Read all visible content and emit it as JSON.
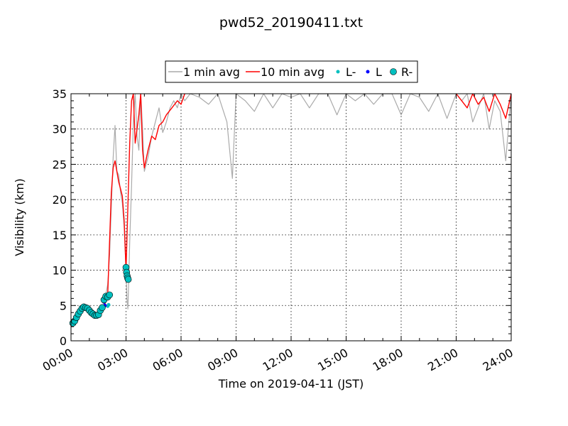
{
  "chart_data": {
    "type": "line",
    "title": "pwd52_20190411.txt",
    "xlabel": "Time on 2019-04-11 (JST)",
    "ylabel": "Visibility (km)",
    "xlim": [
      "00:00",
      "24:00"
    ],
    "ylim": [
      0,
      35
    ],
    "x_unit": "hours",
    "x_ticks": [
      0,
      3,
      6,
      9,
      12,
      15,
      18,
      21,
      24
    ],
    "x_tick_labels": [
      "00:00",
      "03:00",
      "06:00",
      "09:00",
      "12:00",
      "15:00",
      "18:00",
      "21:00",
      "24:00"
    ],
    "y_ticks": [
      0,
      5,
      10,
      15,
      20,
      25,
      30,
      35
    ],
    "y_tick_labels": [
      "0",
      "5",
      "10",
      "15",
      "20",
      "25",
      "30",
      "35"
    ],
    "grid": true,
    "legend": {
      "placement": "top-center, outside plot",
      "entries": [
        "1 min avg",
        "10 min avg",
        "L-",
        "L",
        "R-"
      ]
    },
    "series": [
      {
        "name": "1 min avg",
        "kind": "line",
        "color": "#aaaaaa",
        "x": [
          0.0,
          0.2,
          0.4,
          0.6,
          0.8,
          1.0,
          1.2,
          1.4,
          1.6,
          1.8,
          2.0,
          2.1,
          2.2,
          2.3,
          2.4,
          2.5,
          2.6,
          2.7,
          2.8,
          2.9,
          3.0,
          3.05,
          3.1,
          3.15,
          3.2,
          3.3,
          3.4,
          3.5,
          3.6,
          3.7,
          3.8,
          3.9,
          4.0,
          4.2,
          4.4,
          4.6,
          4.8,
          5.0,
          5.2,
          5.4,
          5.6,
          5.8,
          6.0,
          6.2,
          6.5,
          7.0,
          7.5,
          8.0,
          8.5,
          8.8,
          9.0,
          9.5,
          10.0,
          10.5,
          11.0,
          11.5,
          12.0,
          12.5,
          13.0,
          13.5,
          14.0,
          14.5,
          15.0,
          15.5,
          16.0,
          16.5,
          17.0,
          17.5,
          18.0,
          18.5,
          19.0,
          19.5,
          20.0,
          20.5,
          21.0,
          21.3,
          21.6,
          21.9,
          22.2,
          22.5,
          22.8,
          23.1,
          23.4,
          23.7,
          24.0
        ],
        "y": [
          2.4,
          3.0,
          3.8,
          4.6,
          5.0,
          4.4,
          4.0,
          3.6,
          4.0,
          5.2,
          8.0,
          12.0,
          19.0,
          26.0,
          30.5,
          24.0,
          23.5,
          21.0,
          19.5,
          16.0,
          10.0,
          6.0,
          4.5,
          9.0,
          14.0,
          22.0,
          31.0,
          35.0,
          29.0,
          27.0,
          35.0,
          30.0,
          24.0,
          26.0,
          29.0,
          31.0,
          33.0,
          29.5,
          31.0,
          33.0,
          34.0,
          33.0,
          35.0,
          34.0,
          35.0,
          34.5,
          33.5,
          35.0,
          31.0,
          23.0,
          35.0,
          34.0,
          32.5,
          35.0,
          33.0,
          35.0,
          34.5,
          35.0,
          33.0,
          35.0,
          35.0,
          32.0,
          35.0,
          34.0,
          35.0,
          33.5,
          35.0,
          35.0,
          32.0,
          35.0,
          34.5,
          32.5,
          35.0,
          31.5,
          35.0,
          34.0,
          35.0,
          31.0,
          33.0,
          35.0,
          30.0,
          34.0,
          32.5,
          25.5,
          35.0
        ]
      },
      {
        "name": "10 min avg",
        "kind": "line",
        "color": "#ff0000",
        "x": [
          0.0,
          0.2,
          0.4,
          0.6,
          0.8,
          1.0,
          1.2,
          1.4,
          1.6,
          1.8,
          2.0,
          2.1,
          2.2,
          2.3,
          2.4,
          2.5,
          2.6,
          2.7,
          2.8,
          2.9,
          3.0,
          3.1,
          3.2,
          3.3,
          3.4,
          3.5,
          3.6,
          3.7,
          3.8,
          3.9,
          4.0,
          4.2,
          4.4,
          4.6,
          4.8,
          5.0,
          5.2,
          5.5,
          5.8,
          6.0,
          6.2,
          21.0,
          21.3,
          21.6,
          21.9,
          22.2,
          22.5,
          22.8,
          23.1,
          23.4,
          23.7,
          24.0
        ],
        "y": [
          2.5,
          3.0,
          3.7,
          4.4,
          4.8,
          4.5,
          4.1,
          3.7,
          4.0,
          4.8,
          6.5,
          14.0,
          21.0,
          24.5,
          25.5,
          24.0,
          22.5,
          21.5,
          20.5,
          17.0,
          10.0,
          19.0,
          28.0,
          34.0,
          35.0,
          28.0,
          30.0,
          32.0,
          35.0,
          27.0,
          24.5,
          27.0,
          29.0,
          28.5,
          30.5,
          31.0,
          32.0,
          33.0,
          34.0,
          33.5,
          35.0,
          35.0,
          34.0,
          33.0,
          35.0,
          33.5,
          34.5,
          32.5,
          35.0,
          33.5,
          31.5,
          35.0
        ]
      },
      {
        "name": "L-",
        "kind": "marker",
        "color": "#00bfbf",
        "x": [
          2.0,
          2.05
        ],
        "y": [
          4.9,
          5.1
        ]
      },
      {
        "name": "L",
        "kind": "marker",
        "color": "#0000ff",
        "x": [
          1.8,
          1.85
        ],
        "y": [
          5.5,
          5.0
        ]
      },
      {
        "name": "R-",
        "kind": "marker",
        "color": "#00bfbf",
        "x": [
          0.1,
          0.2,
          0.3,
          0.4,
          0.5,
          0.6,
          0.7,
          0.8,
          0.9,
          1.0,
          1.1,
          1.2,
          1.3,
          1.4,
          1.5,
          1.6,
          1.7,
          1.8,
          1.9,
          2.0,
          2.1,
          3.0,
          3.03,
          3.06,
          3.09,
          3.12
        ],
        "y": [
          2.5,
          2.8,
          3.3,
          3.8,
          4.2,
          4.6,
          4.8,
          4.7,
          4.6,
          4.3,
          4.0,
          3.8,
          3.6,
          3.6,
          3.7,
          4.3,
          4.7,
          5.8,
          6.3,
          6.2,
          6.5,
          10.4,
          9.7,
          9.2,
          8.9,
          8.7
        ]
      }
    ]
  }
}
